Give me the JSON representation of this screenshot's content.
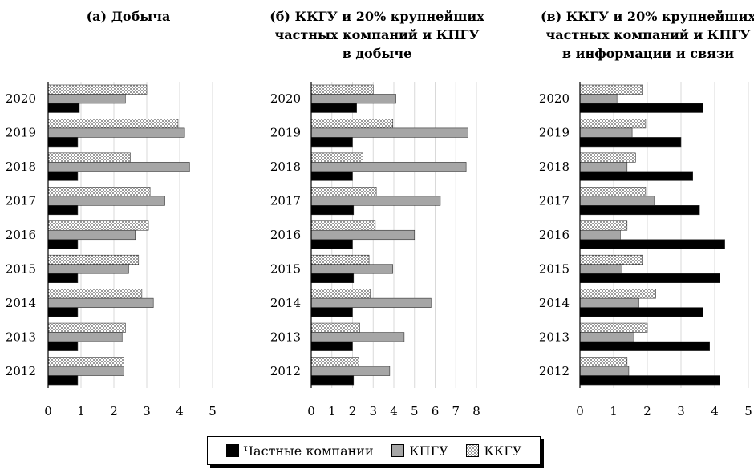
{
  "legend": {
    "private": "Частные компании",
    "kpgu": "КПГУ",
    "kkgu": "ККГУ"
  },
  "colors": {
    "private": "#000000",
    "kpgu": "#a6a6a6",
    "kkgu": "dotted"
  },
  "chart_data": [
    {
      "type": "bar",
      "orientation": "horizontal",
      "title": [
        "(а) Добыча"
      ],
      "categories": [
        "2020",
        "2019",
        "2018",
        "2017",
        "2016",
        "2015",
        "2014",
        "2013",
        "2012"
      ],
      "xlim": [
        0,
        5
      ],
      "xticks": [
        0,
        1,
        2,
        3,
        4,
        5
      ],
      "grid": true,
      "series": [
        {
          "name": "ККГУ",
          "values": [
            3.0,
            3.95,
            2.5,
            3.1,
            3.05,
            2.75,
            2.85,
            2.35,
            2.3
          ]
        },
        {
          "name": "КПГУ",
          "values": [
            2.35,
            4.15,
            4.3,
            3.55,
            2.65,
            2.45,
            3.2,
            2.25,
            2.3
          ]
        },
        {
          "name": "Частные компании",
          "values": [
            0.95,
            0.9,
            0.9,
            0.9,
            0.9,
            0.9,
            0.9,
            0.9,
            0.9
          ]
        }
      ]
    },
    {
      "type": "bar",
      "orientation": "horizontal",
      "title": [
        "(б) ККГУ и 20% крупнейших",
        "частных компаний и КПГУ",
        "в добыче"
      ],
      "categories": [
        "2020",
        "2019",
        "2018",
        "2017",
        "2016",
        "2015",
        "2014",
        "2013",
        "2012"
      ],
      "xlim": [
        0,
        8
      ],
      "xticks": [
        0,
        1,
        2,
        3,
        4,
        5,
        6,
        7,
        8
      ],
      "grid": true,
      "series": [
        {
          "name": "ККГУ",
          "values": [
            3.0,
            3.95,
            2.5,
            3.15,
            3.1,
            2.8,
            2.85,
            2.35,
            2.3
          ]
        },
        {
          "name": "КПГУ",
          "values": [
            4.1,
            7.6,
            7.5,
            6.25,
            5.0,
            3.95,
            5.8,
            4.5,
            3.8
          ]
        },
        {
          "name": "Частные компании",
          "values": [
            2.2,
            2.0,
            2.0,
            2.05,
            2.0,
            2.05,
            2.0,
            2.0,
            2.05
          ]
        }
      ]
    },
    {
      "type": "bar",
      "orientation": "horizontal",
      "title": [
        "(в) ККГУ и 20% крупнейших",
        "частных компаний и КПГУ",
        "в информации и связи"
      ],
      "categories": [
        "2020",
        "2019",
        "2018",
        "2017",
        "2016",
        "2015",
        "2014",
        "2013",
        "2012"
      ],
      "xlim": [
        0,
        5
      ],
      "xticks": [
        0,
        1,
        2,
        3,
        4,
        5
      ],
      "grid": true,
      "series": [
        {
          "name": "ККГУ",
          "values": [
            1.85,
            1.95,
            1.65,
            1.95,
            1.4,
            1.85,
            2.25,
            2.0,
            1.4
          ]
        },
        {
          "name": "КПГУ",
          "values": [
            1.1,
            1.55,
            1.4,
            2.2,
            1.2,
            1.25,
            1.75,
            1.6,
            1.45
          ]
        },
        {
          "name": "Частные компании",
          "values": [
            3.65,
            3.0,
            3.35,
            3.55,
            4.3,
            4.15,
            3.65,
            3.85,
            4.15
          ]
        }
      ]
    }
  ]
}
